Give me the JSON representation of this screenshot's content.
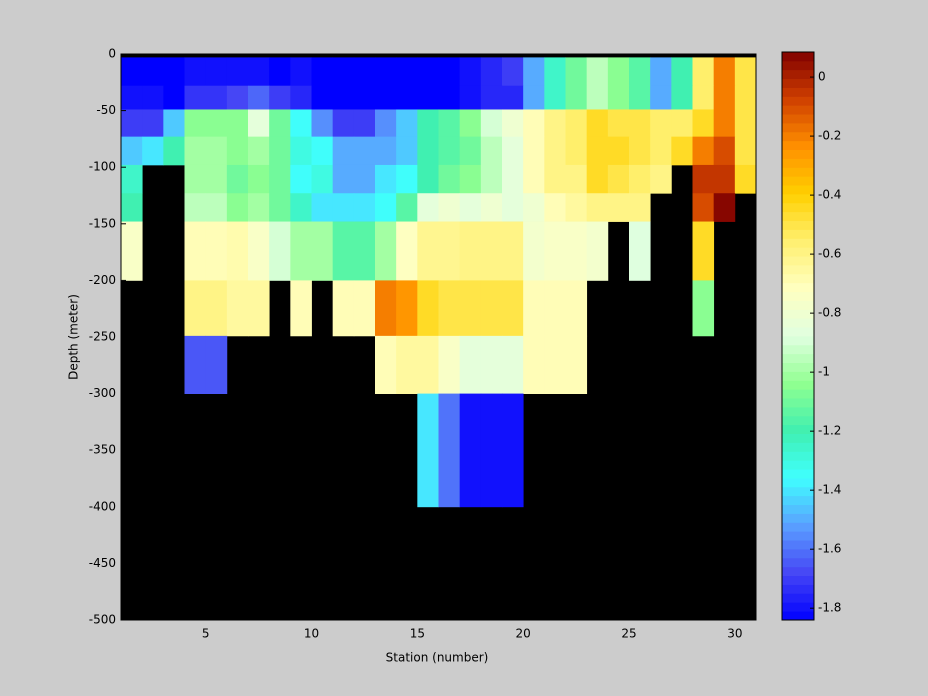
{
  "chart_data": {
    "type": "heatmap",
    "xlabel": "Station (number)",
    "ylabel": "Depth (meter)",
    "xlim": [
      1,
      31
    ],
    "ylim": [
      -500,
      0
    ],
    "xticks": [
      5,
      10,
      15,
      20,
      25,
      30
    ],
    "yticks": [
      0,
      -50,
      -100,
      -150,
      -200,
      -250,
      -300,
      -350,
      -400,
      -450,
      -500
    ],
    "x_edges": [
      1,
      2,
      3,
      4,
      5,
      6,
      7,
      8,
      9,
      10,
      11,
      12,
      13,
      14,
      15,
      16,
      17,
      18,
      19,
      20,
      21,
      22,
      23,
      24,
      25,
      26,
      27,
      28,
      29,
      30,
      31
    ],
    "y_edges": [
      -3,
      -28,
      -49,
      -73,
      -98,
      -123,
      -148,
      -200,
      -249,
      -300,
      -400
    ],
    "z": [
      [
        -1.84,
        -1.84,
        -1.84,
        -1.8,
        -1.8,
        -1.8,
        -1.8,
        -1.84,
        -1.8,
        -1.84,
        -1.84,
        -1.84,
        -1.84,
        -1.84,
        -1.84,
        -1.84,
        -1.8,
        -1.75,
        -1.7,
        -1.5,
        -1.25,
        -1.1,
        -0.95,
        -1.05,
        -1.15,
        -1.5,
        -1.2,
        -0.55,
        -0.2,
        -0.5
      ],
      [
        -1.8,
        -1.8,
        -1.84,
        -1.72,
        -1.72,
        -1.68,
        -1.62,
        -1.7,
        -1.75,
        -1.84,
        -1.84,
        -1.84,
        -1.84,
        -1.84,
        -1.84,
        -1.84,
        -1.8,
        -1.75,
        -1.75,
        -1.5,
        -1.25,
        -1.1,
        -0.95,
        -1.05,
        -1.15,
        -1.5,
        -1.2,
        -0.55,
        -0.2,
        -0.5
      ],
      [
        -1.7,
        -1.7,
        -1.45,
        -1.05,
        -1.05,
        -1.05,
        -0.85,
        -1.1,
        -1.35,
        -1.55,
        -1.7,
        -1.7,
        -1.55,
        -1.45,
        -1.2,
        -1.15,
        -1.05,
        -0.9,
        -0.8,
        -0.7,
        -0.6,
        -0.55,
        -0.45,
        -0.5,
        -0.5,
        -0.55,
        -0.55,
        -0.45,
        -0.2,
        -0.5
      ],
      [
        -1.45,
        -1.4,
        -1.2,
        -1.0,
        -1.0,
        -1.05,
        -1.0,
        -1.1,
        -1.3,
        -1.35,
        -1.5,
        -1.5,
        -1.5,
        -1.45,
        -1.2,
        -1.15,
        -1.1,
        -0.95,
        -0.85,
        -0.7,
        -0.6,
        -0.55,
        -0.45,
        -0.45,
        -0.5,
        -0.55,
        -0.45,
        -0.2,
        -0.1,
        -0.5
      ],
      [
        -1.25,
        null,
        null,
        -1.0,
        -1.0,
        -1.1,
        -1.05,
        -1.1,
        -1.35,
        -1.3,
        -1.5,
        -1.5,
        -1.4,
        -1.35,
        -1.2,
        -1.1,
        -1.05,
        -0.95,
        -0.85,
        -0.7,
        -0.6,
        -0.6,
        -0.45,
        -0.5,
        -0.55,
        -0.6,
        null,
        -0.05,
        -0.05,
        -0.45
      ],
      [
        -1.2,
        null,
        null,
        -0.95,
        -0.95,
        -1.05,
        -1.0,
        -1.1,
        -1.25,
        -1.4,
        -1.4,
        -1.4,
        -1.35,
        -1.15,
        -0.85,
        -0.8,
        -0.85,
        -0.8,
        -0.85,
        -0.8,
        -0.7,
        -0.65,
        -0.6,
        -0.6,
        -0.6,
        null,
        null,
        -0.1,
        0.07,
        null
      ],
      [
        -0.75,
        null,
        null,
        -0.7,
        -0.7,
        -0.68,
        -0.75,
        -0.9,
        -1.0,
        -1.0,
        -1.15,
        -1.15,
        -1.0,
        -0.72,
        -0.62,
        -0.62,
        -0.6,
        -0.6,
        -0.6,
        -0.78,
        -0.75,
        -0.75,
        -0.78,
        null,
        -0.88,
        null,
        null,
        -0.45,
        null,
        null
      ],
      [
        null,
        null,
        null,
        -0.6,
        -0.6,
        -0.65,
        -0.65,
        null,
        -0.7,
        null,
        -0.7,
        -0.7,
        -0.2,
        -0.25,
        -0.45,
        -0.5,
        -0.5,
        -0.5,
        -0.5,
        -0.7,
        -0.7,
        -0.7,
        null,
        null,
        null,
        null,
        null,
        -1.05,
        null,
        null
      ],
      [
        null,
        null,
        null,
        -1.65,
        -1.65,
        null,
        null,
        null,
        null,
        null,
        null,
        null,
        -0.7,
        -0.65,
        -0.65,
        -0.75,
        -0.85,
        -0.85,
        -0.85,
        -0.7,
        -0.7,
        -0.7,
        null,
        null,
        null,
        null,
        null,
        null,
        null,
        null
      ],
      [
        null,
        null,
        null,
        null,
        null,
        null,
        null,
        null,
        null,
        null,
        null,
        null,
        null,
        null,
        -1.4,
        -1.6,
        -1.8,
        -1.8,
        -1.8,
        null,
        null,
        null,
        null,
        null,
        null,
        null,
        null,
        null,
        null,
        null
      ]
    ],
    "clim": [
      -1.84,
      0.085
    ],
    "colorbar_ticks": [
      0,
      -0.2,
      -0.4,
      -0.6,
      -0.8,
      -1,
      -1.2,
      -1.4,
      -1.6,
      -1.8
    ],
    "colormap": [
      "#0000ff",
      "#4646f5",
      "#5aa0ff",
      "#40ffff",
      "#40f0b0",
      "#90ff90",
      "#e0ffe0",
      "#ffffc0",
      "#fff070",
      "#ffd000",
      "#ff9000",
      "#d04000",
      "#800000"
    ],
    "missing_color": "#000000"
  }
}
